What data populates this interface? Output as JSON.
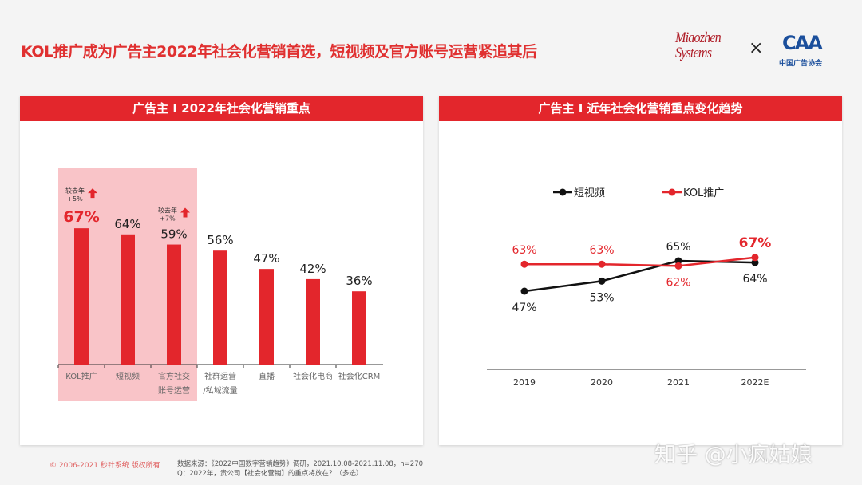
{
  "title": "KOL推广成为广告主2022年社会化营销首选，短视频及官方账号运营紧追其后",
  "logos": {
    "miaozhen": "Miaozhen Systems",
    "times": "×",
    "caa": "CAA",
    "caa_sub": "中国广告协会"
  },
  "footer": {
    "copyright": "© 2006-2021 秒针系统 版权所有",
    "source": "数据来源：《2022中国数字营销趋势》调研，2021.10.08-2021.11.08，n=270",
    "question": "Q：2022年，贵公司【社会化营销】的重点将放在？（多选）"
  },
  "watermark": "知乎 @小疯姑娘",
  "colors": {
    "red": "#e3262c",
    "highlight": "#f9c4c8",
    "black": "#111111"
  },
  "chart_data": [
    {
      "type": "bar",
      "title": "广告主 I 2022年社会化营销重点",
      "categories": [
        "KOL推广",
        "短视频",
        "官方社交\n账号运营",
        "社群运营\n/私域流量",
        "直播",
        "社会化电商",
        "社会化CRM"
      ],
      "values": [
        67,
        64,
        59,
        56,
        47,
        42,
        36
      ],
      "labels": [
        "67%",
        "64%",
        "59%",
        "56%",
        "47%",
        "42%",
        "36%"
      ],
      "annotations": [
        {
          "category": "KOL推广",
          "line1": "较去年",
          "line2": "+5%"
        },
        {
          "category": "官方社交\n账号运营",
          "line1": "较去年",
          "line2": "+7%"
        }
      ],
      "highlighted": [
        "KOL推广",
        "短视频",
        "官方社交\n账号运营"
      ],
      "ylim": [
        0,
        100
      ]
    },
    {
      "type": "line",
      "title": "广告主 I 近年社会化营销重点变化趋势",
      "x": [
        "2019",
        "2020",
        "2021",
        "2022E"
      ],
      "series": [
        {
          "name": "短视频",
          "color": "#111111",
          "values": [
            47,
            53,
            65,
            64
          ]
        },
        {
          "name": "KOL推广",
          "color": "#e3262c",
          "values": [
            63,
            63,
            62,
            67
          ]
        }
      ],
      "legend": "top"
    }
  ]
}
